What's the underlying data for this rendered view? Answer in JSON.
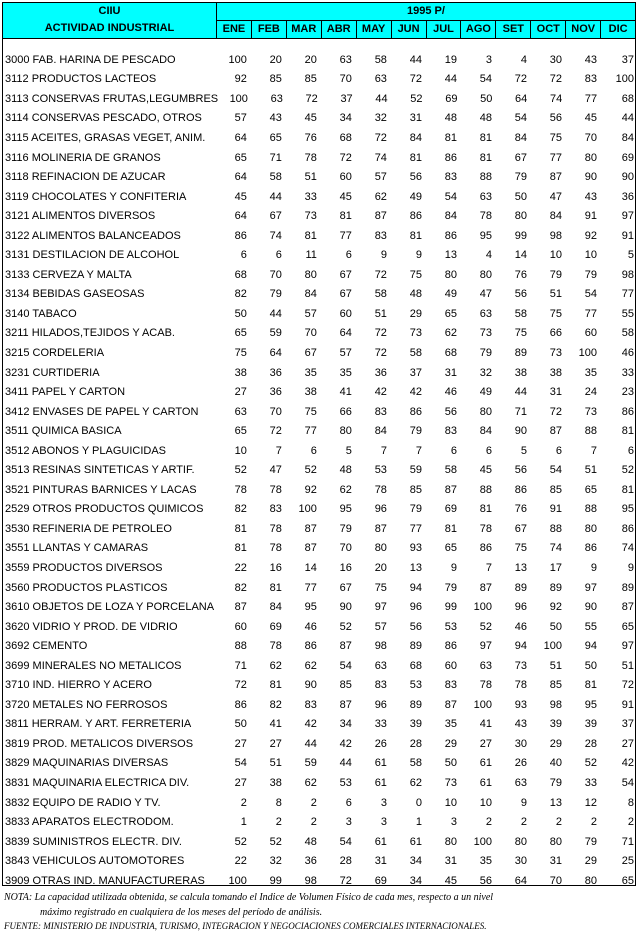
{
  "header": {
    "ciiu": "CIIU",
    "activity": "ACTIVIDAD INDUSTRIAL",
    "year": "1995 P/",
    "months": [
      "ENE",
      "FEB",
      "MAR",
      "ABR",
      "MAY",
      "JUN",
      "JUL",
      "AGO",
      "SET",
      "OCT",
      "NOV",
      "DIC"
    ]
  },
  "rows": [
    {
      "name": "3000 FAB. HARINA DE PESCADO",
      "values": [
        100,
        20,
        20,
        63,
        58,
        44,
        19,
        3,
        4,
        30,
        43,
        37
      ]
    },
    {
      "name": "3112 PRODUCTOS LACTEOS",
      "values": [
        92,
        85,
        85,
        70,
        63,
        72,
        44,
        54,
        72,
        72,
        83,
        100
      ]
    },
    {
      "name": "3113 CONSERVAS FRUTAS,LEGUMBRES",
      "values": [
        100,
        63,
        72,
        37,
        44,
        52,
        69,
        50,
        64,
        74,
        77,
        68
      ]
    },
    {
      "name": "3114 CONSERVAS PESCADO, OTROS",
      "values": [
        57,
        43,
        45,
        34,
        32,
        31,
        48,
        48,
        54,
        56,
        45,
        44
      ]
    },
    {
      "name": "3115 ACEITES, GRASAS VEGET, ANIM.",
      "values": [
        64,
        65,
        76,
        68,
        72,
        84,
        81,
        81,
        84,
        75,
        70,
        84
      ]
    },
    {
      "name": "3116 MOLINERIA DE GRANOS",
      "values": [
        65,
        71,
        78,
        72,
        74,
        81,
        86,
        81,
        67,
        77,
        80,
        69
      ]
    },
    {
      "name": "3118 REFINACION DE AZUCAR",
      "values": [
        64,
        58,
        51,
        60,
        57,
        56,
        83,
        88,
        79,
        87,
        90,
        90
      ]
    },
    {
      "name": "3119 CHOCOLATES Y CONFITERIA",
      "values": [
        45,
        44,
        33,
        45,
        62,
        49,
        54,
        63,
        50,
        47,
        43,
        36
      ]
    },
    {
      "name": "3121 ALIMENTOS DIVERSOS",
      "values": [
        64,
        67,
        73,
        81,
        87,
        86,
        84,
        78,
        80,
        84,
        91,
        97
      ]
    },
    {
      "name": "3122 ALIMENTOS BALANCEADOS",
      "values": [
        86,
        74,
        81,
        77,
        83,
        81,
        86,
        95,
        99,
        98,
        92,
        91
      ]
    },
    {
      "name": "3131 DESTILACION DE ALCOHOL",
      "values": [
        6,
        6,
        11,
        6,
        9,
        9,
        13,
        4,
        14,
        10,
        10,
        5
      ]
    },
    {
      "name": "3133 CERVEZA Y MALTA",
      "values": [
        68,
        70,
        80,
        67,
        72,
        75,
        80,
        80,
        76,
        79,
        79,
        98
      ]
    },
    {
      "name": "3134 BEBIDAS GASEOSAS",
      "values": [
        82,
        79,
        84,
        67,
        58,
        48,
        49,
        47,
        56,
        51,
        54,
        77
      ]
    },
    {
      "name": "3140 TABACO",
      "values": [
        50,
        44,
        57,
        60,
        51,
        29,
        65,
        63,
        58,
        75,
        77,
        55
      ]
    },
    {
      "name": "3211 HILADOS,TEJIDOS Y ACAB.",
      "values": [
        65,
        59,
        70,
        64,
        72,
        73,
        62,
        73,
        75,
        66,
        60,
        58
      ]
    },
    {
      "name": "3215 CORDELERIA",
      "values": [
        75,
        64,
        67,
        57,
        72,
        58,
        68,
        79,
        89,
        73,
        100,
        46
      ]
    },
    {
      "name": "3231 CURTIDERIA",
      "values": [
        38,
        36,
        35,
        35,
        36,
        37,
        31,
        32,
        38,
        38,
        35,
        33
      ]
    },
    {
      "name": "3411 PAPEL Y CARTON",
      "values": [
        27,
        36,
        38,
        41,
        42,
        42,
        46,
        49,
        44,
        31,
        24,
        23
      ]
    },
    {
      "name": "3412 ENVASES DE PAPEL Y CARTON",
      "values": [
        63,
        70,
        75,
        66,
        83,
        86,
        56,
        80,
        71,
        72,
        73,
        86
      ]
    },
    {
      "name": "3511 QUIMICA BASICA",
      "values": [
        65,
        72,
        77,
        80,
        84,
        79,
        83,
        84,
        90,
        87,
        88,
        81
      ]
    },
    {
      "name": "3512 ABONOS Y PLAGUICIDAS",
      "values": [
        10,
        7,
        6,
        5,
        7,
        7,
        6,
        6,
        5,
        6,
        7,
        6
      ]
    },
    {
      "name": "3513 RESINAS SINTETICAS Y ARTIF.",
      "values": [
        52,
        47,
        52,
        48,
        53,
        59,
        58,
        45,
        56,
        54,
        51,
        52
      ]
    },
    {
      "name": "3521 PINTURAS BARNICES Y LACAS",
      "values": [
        78,
        78,
        92,
        62,
        78,
        85,
        87,
        88,
        86,
        85,
        65,
        81
      ]
    },
    {
      "name": "2529 OTROS PRODUCTOS QUIMICOS",
      "values": [
        82,
        83,
        100,
        95,
        96,
        79,
        69,
        81,
        76,
        91,
        88,
        95
      ]
    },
    {
      "name": "3530 REFINERIA DE PETROLEO",
      "values": [
        81,
        78,
        87,
        79,
        87,
        77,
        81,
        78,
        67,
        88,
        80,
        86
      ]
    },
    {
      "name": "3551 LLANTAS Y CAMARAS",
      "values": [
        81,
        78,
        87,
        70,
        80,
        93,
        65,
        86,
        75,
        74,
        86,
        74
      ]
    },
    {
      "name": "3559 PRODUCTOS DIVERSOS",
      "values": [
        22,
        16,
        14,
        16,
        20,
        13,
        9,
        7,
        13,
        17,
        9,
        9
      ]
    },
    {
      "name": "3560 PRODUCTOS PLASTICOS",
      "values": [
        82,
        81,
        77,
        67,
        75,
        94,
        79,
        87,
        89,
        89,
        97,
        89
      ]
    },
    {
      "name": "3610 OBJETOS DE LOZA Y PORCELANA",
      "values": [
        87,
        84,
        95,
        90,
        97,
        96,
        99,
        100,
        96,
        92,
        90,
        87
      ]
    },
    {
      "name": "3620 VIDRIO Y PROD. DE VIDRIO",
      "values": [
        60,
        69,
        46,
        52,
        57,
        56,
        53,
        52,
        46,
        50,
        55,
        65
      ]
    },
    {
      "name": "3692 CEMENTO",
      "values": [
        88,
        78,
        86,
        87,
        98,
        89,
        86,
        97,
        94,
        100,
        94,
        97
      ]
    },
    {
      "name": "3699 MINERALES NO METALICOS",
      "values": [
        71,
        62,
        62,
        54,
        63,
        68,
        60,
        63,
        73,
        51,
        50,
        51
      ]
    },
    {
      "name": "3710 IND. HIERRO Y ACERO",
      "values": [
        72,
        81,
        90,
        85,
        83,
        53,
        83,
        78,
        78,
        85,
        81,
        72
      ]
    },
    {
      "name": "3720 METALES NO FERROSOS",
      "values": [
        86,
        82,
        83,
        87,
        96,
        89,
        87,
        100,
        93,
        98,
        95,
        91
      ]
    },
    {
      "name": "3811 HERRAM. Y ART. FERRETERIA",
      "values": [
        50,
        41,
        42,
        34,
        33,
        39,
        35,
        41,
        43,
        39,
        39,
        37
      ]
    },
    {
      "name": "3819 PROD. METALICOS DIVERSOS",
      "values": [
        27,
        27,
        44,
        42,
        26,
        28,
        29,
        27,
        30,
        29,
        28,
        27
      ]
    },
    {
      "name": "3829 MAQUINARIAS DIVERSAS",
      "values": [
        54,
        51,
        59,
        44,
        61,
        58,
        50,
        61,
        26,
        40,
        52,
        42
      ]
    },
    {
      "name": "3831 MAQUINARIA ELECTRICA DIV.",
      "values": [
        27,
        38,
        62,
        53,
        61,
        62,
        73,
        61,
        63,
        79,
        33,
        54
      ]
    },
    {
      "name": "3832 EQUIPO DE RADIO Y TV.",
      "values": [
        2,
        8,
        2,
        6,
        3,
        0,
        10,
        10,
        9,
        13,
        12,
        8
      ]
    },
    {
      "name": "3833 APARATOS ELECTRODOM.",
      "values": [
        1,
        2,
        2,
        3,
        3,
        1,
        3,
        2,
        2,
        2,
        2,
        2
      ]
    },
    {
      "name": "3839 SUMINISTROS ELECTR. DIV.",
      "values": [
        52,
        52,
        48,
        54,
        61,
        61,
        80,
        100,
        80,
        80,
        79,
        71
      ]
    },
    {
      "name": "3843 VEHICULOS AUTOMOTORES",
      "values": [
        22,
        32,
        36,
        28,
        31,
        34,
        31,
        35,
        30,
        31,
        29,
        25
      ]
    },
    {
      "name": "3909 OTRAS IND. MANUFACTURERAS",
      "values": [
        100,
        99,
        98,
        72,
        69,
        34,
        45,
        56,
        64,
        70,
        80,
        65
      ]
    }
  ],
  "footer": {
    "note_line1": "NOTA:  La capacidad utilizada obtenida, se calcula tomando el Indice de Volumen Físico de cada mes, respecto a un nivel",
    "note_line2": "máximo registrado en cualquiera de los meses del período de análisis.",
    "source": "FUENTE: MINISTERIO DE INDUSTRIA, TURISMO, INTEGRACION Y NEGOCIACIONES COMERCIALES INTERNACIONALES."
  },
  "colors": {
    "header_bg": "#00ffff"
  }
}
